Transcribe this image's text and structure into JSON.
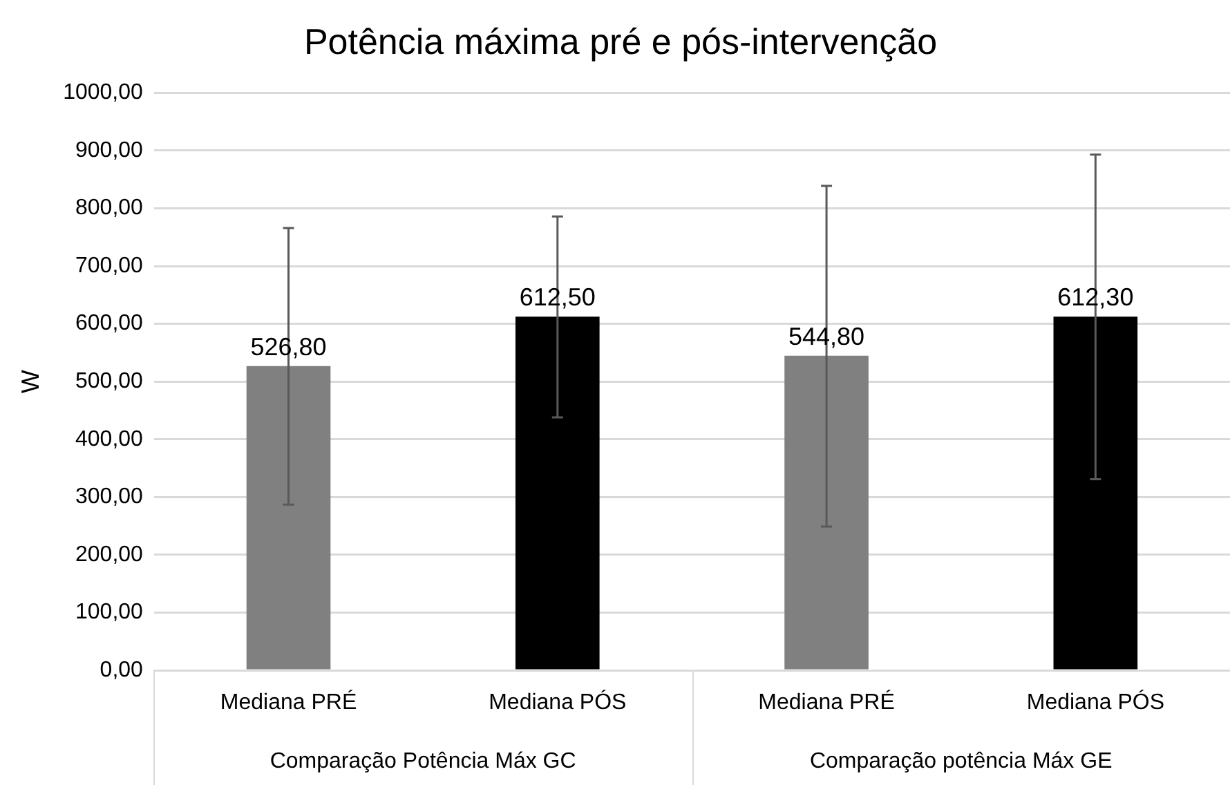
{
  "chart_data": {
    "type": "bar",
    "title": "Potência máxima pré e pós-intervenção",
    "ylabel": "W",
    "categories": [
      "Mediana PRÉ",
      "Mediana PÓS",
      "Mediana PRÉ",
      "Mediana PÓS"
    ],
    "values": [
      526.8,
      612.5,
      544.8,
      612.3
    ],
    "colors": [
      "#808080",
      "#000000",
      "#808080",
      "#000000"
    ],
    "errors": [
      [
        287,
        766
      ],
      [
        438,
        786
      ],
      [
        249,
        839
      ],
      [
        331,
        893
      ]
    ],
    "value_labels": [
      "526,80",
      "612,50",
      "544,80",
      "612,30"
    ],
    "annotations": [
      "Comparação Potência Máx GC",
      "Comparação potência Máx GE"
    ],
    "ylim": [
      0,
      1000
    ],
    "yticks": [
      {
        "value": 0,
        "label": "0,00"
      },
      {
        "value": 100,
        "label": "100,00"
      },
      {
        "value": 200,
        "label": "200,00"
      },
      {
        "value": 300,
        "label": "300,00"
      },
      {
        "value": 400,
        "label": "400,00"
      },
      {
        "value": 500,
        "label": "500,00"
      },
      {
        "value": 600,
        "label": "600,00"
      },
      {
        "value": 700,
        "label": "700,00"
      },
      {
        "value": 800,
        "label": "800,00"
      },
      {
        "value": 900,
        "label": "900,00"
      },
      {
        "value": 1000,
        "label": "1000,00"
      }
    ],
    "grid": "y",
    "legend": false
  }
}
